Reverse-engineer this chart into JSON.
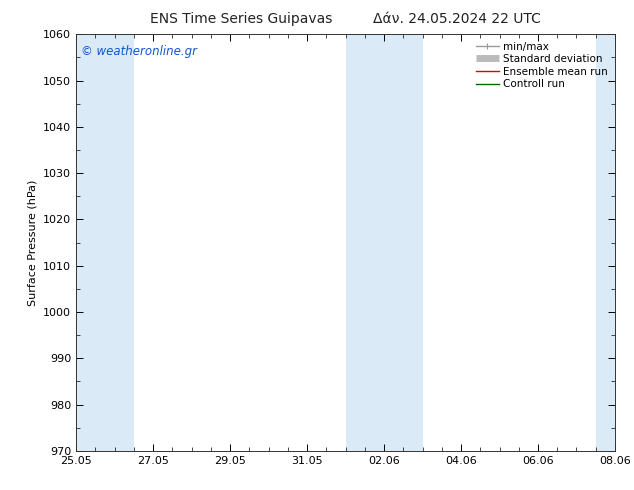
{
  "title_left": "ENS Time Series Guipavas",
  "title_right": "Δάν. 24.05.2024 22 UTC",
  "ylabel": "Surface Pressure (hPa)",
  "ylim": [
    970,
    1060
  ],
  "yticks": [
    970,
    980,
    990,
    1000,
    1010,
    1020,
    1030,
    1040,
    1050,
    1060
  ],
  "xtick_labels": [
    "25.05",
    "27.05",
    "29.05",
    "31.05",
    "02.06",
    "04.06",
    "06.06",
    "08.06"
  ],
  "x_positions": [
    0,
    2,
    4,
    6,
    8,
    10,
    12,
    14
  ],
  "x_start": 0,
  "x_end": 14,
  "shaded_bands": [
    {
      "xmin": 0.0,
      "xmax": 1.5
    },
    {
      "xmin": 7.0,
      "xmax": 9.0
    },
    {
      "xmin": 13.5,
      "xmax": 14.0
    }
  ],
  "shaded_color": "#daeaf7",
  "watermark": "© weatheronline.gr",
  "watermark_color": "#1155cc",
  "background_color": "#ffffff",
  "plot_bg_color": "#ffffff",
  "legend_items": [
    {
      "label": "min/max",
      "color": "#999999",
      "lw": 1.0
    },
    {
      "label": "Standard deviation",
      "color": "#bbbbbb",
      "lw": 5
    },
    {
      "label": "Ensemble mean run",
      "color": "#dd0000",
      "lw": 1.0
    },
    {
      "label": "Controll run",
      "color": "#006600",
      "lw": 1.0
    }
  ],
  "tick_fontsize": 8,
  "label_fontsize": 8,
  "title_fontsize": 10,
  "legend_fontsize": 7.5
}
